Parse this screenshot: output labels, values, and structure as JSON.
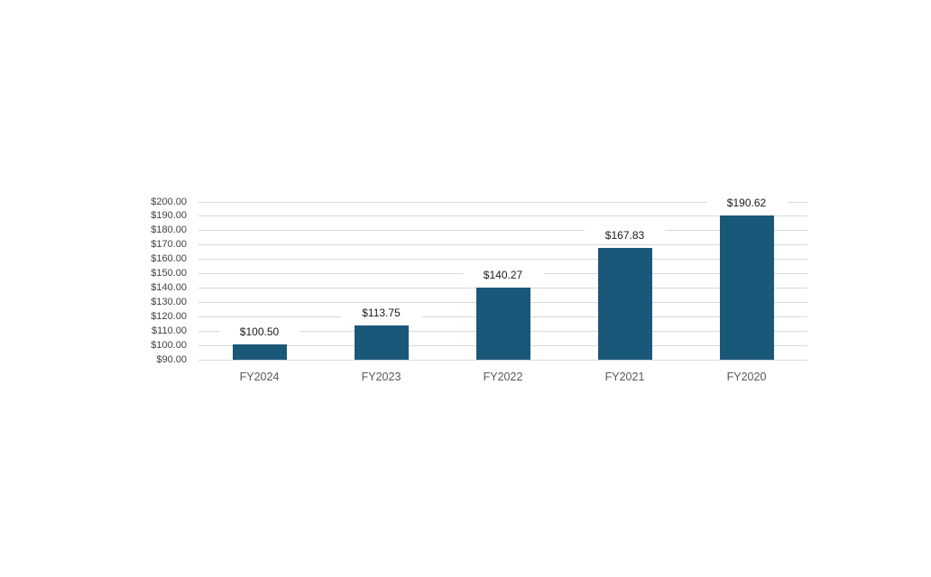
{
  "chart_data": {
    "type": "bar",
    "title": "",
    "categories": [
      "FY2024",
      "FY2023",
      "FY2022",
      "FY2021",
      "FY2020"
    ],
    "values": [
      100.5,
      113.75,
      140.27,
      167.83,
      190.62
    ],
    "value_labels": [
      "$100.50",
      "$113.75",
      "$140.27",
      "$167.83",
      "$190.62"
    ],
    "y_tick_values": [
      200,
      190,
      180,
      170,
      160,
      150,
      140,
      130,
      120,
      110,
      100,
      90
    ],
    "y_tick_labels": [
      "$200.00",
      "$190.00",
      "$180.00",
      "$170.00",
      "$160.00",
      "$150.00",
      "$140.00",
      "$130.00",
      "$120.00",
      "$110.00",
      "$100.00",
      "$90.00"
    ],
    "ylim": [
      90,
      200
    ],
    "xlabel": "",
    "ylabel": "",
    "grid": true,
    "legend_position": "none",
    "bar_color": "#1a587a",
    "gridline_color": "#d9d9d9",
    "y_tick_color": "#404040",
    "x_tick_color": "#595959",
    "data_label_color": "#1a1a1a",
    "background_color": "#ffffff"
  }
}
